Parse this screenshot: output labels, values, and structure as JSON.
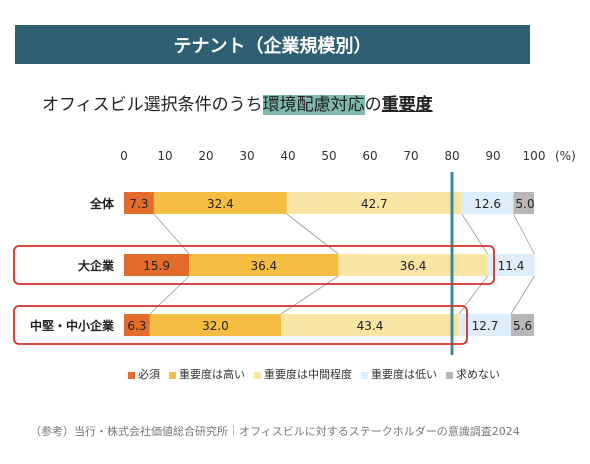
{
  "banner": "テナント（企業規模別）",
  "subtitle": {
    "pre": "オフィスビル選択条件のうち",
    "highlight": "環境配慮対応",
    "mid": "の",
    "underline": "重要度"
  },
  "chart_data": {
    "type": "bar",
    "orientation": "horizontal",
    "stacked": true,
    "unit_label": "(%)",
    "xlim": [
      0,
      100
    ],
    "ticks": [
      0,
      10,
      20,
      30,
      40,
      50,
      60,
      70,
      80,
      90,
      100
    ],
    "categories": [
      "全体",
      "大企業",
      "中堅・中小企業"
    ],
    "series": [
      {
        "name": "必須",
        "color": "#e46c2a",
        "values": [
          7.3,
          15.9,
          6.3
        ]
      },
      {
        "name": "重要度は高い",
        "color": "#f5bd42",
        "values": [
          32.4,
          36.4,
          32.0
        ]
      },
      {
        "name": "重要度は中間程度",
        "color": "#fae5a4",
        "values": [
          42.7,
          36.4,
          43.4
        ]
      },
      {
        "name": "重要度は低い",
        "color": "#ddeefa",
        "values": [
          12.6,
          11.4,
          12.7
        ]
      },
      {
        "name": "求めない",
        "color": "#b7b7b7",
        "values": [
          5.0,
          0,
          5.6
        ]
      }
    ],
    "reference_line": 80,
    "highlighted_categories": [
      "大企業",
      "中堅・中小企業"
    ],
    "legend_position": "bottom"
  },
  "source": "（参考）当行・株式会社価値総合研究所｜オフィスビルに対するステークホルダーの意識調査2024"
}
